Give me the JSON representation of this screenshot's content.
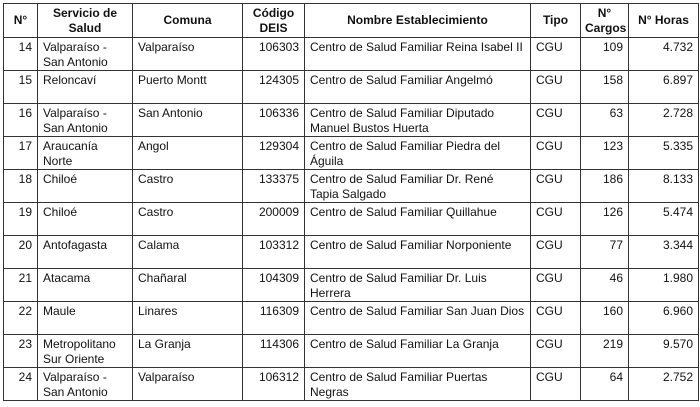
{
  "table": {
    "headers": [
      "N°",
      "Servicio de Salud",
      "Comuna",
      "Código DEIS",
      "Nombre Establecimiento",
      "Tipo",
      "N° Cargos",
      "N° Horas"
    ],
    "rows": [
      [
        "14",
        "Valparaíso - San Antonio",
        "Valparaíso",
        "106303",
        "Centro de Salud Familiar Reina Isabel II",
        "CGU",
        "109",
        "4.732"
      ],
      [
        "15",
        "Reloncaví",
        "Puerto Montt",
        "124305",
        "Centro de Salud Familiar Angelmó",
        "CGU",
        "158",
        "6.897"
      ],
      [
        "16",
        "Valparaíso - San Antonio",
        "San Antonio",
        "106336",
        "Centro de Salud Familiar Diputado Manuel Bustos Huerta",
        "CGU",
        "63",
        "2.728"
      ],
      [
        "17",
        "Araucanía Norte",
        "Angol",
        "129304",
        "Centro de Salud Familiar Piedra del Águila",
        "CGU",
        "123",
        "5.335"
      ],
      [
        "18",
        "Chiloé",
        "Castro",
        "133375",
        "Centro de Salud Familiar Dr. René Tapia Salgado",
        "CGU",
        "186",
        "8.133"
      ],
      [
        "19",
        "Chiloé",
        "Castro",
        "200009",
        "Centro de Salud Familiar Quillahue",
        "CGU",
        "126",
        "5.474"
      ],
      [
        "20",
        "Antofagasta",
        "Calama",
        "103312",
        "Centro de Salud Familiar Norponiente",
        "CGU",
        "77",
        "3.344"
      ],
      [
        "21",
        "Atacama",
        "Chañaral",
        "104309",
        "Centro de Salud Familiar Dr. Luis Herrera",
        "CGU",
        "46",
        "1.980"
      ],
      [
        "22",
        "Maule",
        "Linares",
        "116309",
        "Centro de Salud Familiar San Juan Dios",
        "CGU",
        "160",
        "6.960"
      ],
      [
        "23",
        "Metropolitano Sur Oriente",
        "La Granja",
        "114306",
        "Centro de Salud Familiar La Granja",
        "CGU",
        "219",
        "9.570"
      ],
      [
        "24",
        "Valparaíso - San Antonio",
        "Valparaíso",
        "106312",
        "Centro de Salud Familiar Puertas Negras",
        "CGU",
        "64",
        "2.752"
      ]
    ]
  }
}
